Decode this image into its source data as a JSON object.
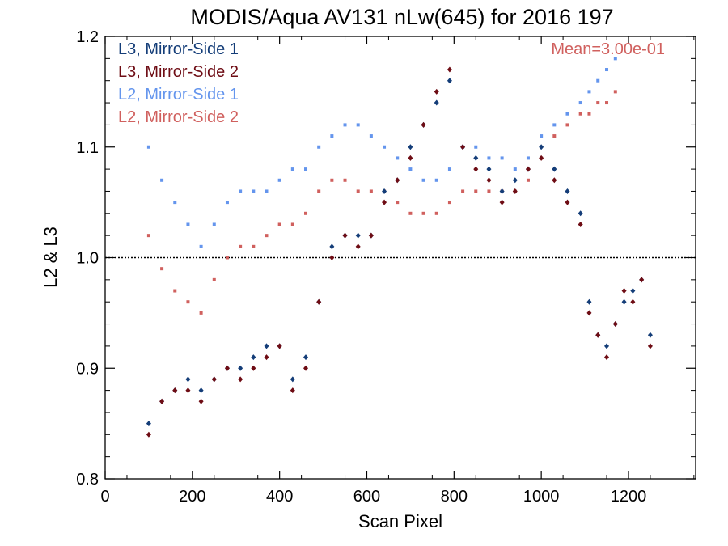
{
  "chart_data": {
    "type": "scatter",
    "title": "MODIS/Aqua AV131 nLw(645) for 2016 197",
    "xlabel": "Scan Pixel",
    "ylabel": "L2 & L3",
    "xlim": [
      0,
      1354
    ],
    "ylim": [
      0.8,
      1.2
    ],
    "xticks": [
      0,
      200,
      400,
      600,
      800,
      1000,
      1200
    ],
    "yticks": [
      0.8,
      0.9,
      1.0,
      1.1,
      1.2
    ],
    "ytick_labels": [
      "0.8",
      "0.9",
      "1.0",
      "1.1",
      "1.2"
    ],
    "reference_line": 1.0,
    "annotation": "Mean=3.00e-01",
    "annotation_color": "#d0605e",
    "legend_position": "top-left",
    "series": [
      {
        "name": "L3, Mirror-Side 1",
        "color": "#143d78",
        "marker": "diamond",
        "x": [
          100,
          130,
          160,
          190,
          220,
          250,
          280,
          310,
          340,
          370,
          400,
          430,
          460,
          490,
          520,
          550,
          580,
          610,
          640,
          670,
          700,
          730,
          760,
          790,
          820,
          850,
          880,
          910,
          940,
          970,
          1000,
          1030,
          1060,
          1090,
          1110,
          1130,
          1150,
          1170,
          1190,
          1210,
          1230,
          1250
        ],
        "y": [
          0.85,
          0.87,
          0.88,
          0.89,
          0.88,
          0.89,
          0.9,
          0.9,
          0.91,
          0.92,
          0.92,
          0.89,
          0.91,
          0.96,
          1.01,
          1.02,
          1.02,
          1.02,
          1.06,
          1.07,
          1.1,
          1.12,
          1.14,
          1.16,
          1.1,
          1.09,
          1.08,
          1.06,
          1.07,
          1.08,
          1.1,
          1.08,
          1.06,
          1.04,
          0.96,
          0.93,
          0.92,
          0.94,
          0.96,
          0.97,
          0.98,
          0.93
        ]
      },
      {
        "name": "L3, Mirror-Side 2",
        "color": "#6e0c14",
        "marker": "diamond",
        "x": [
          100,
          130,
          160,
          190,
          220,
          250,
          280,
          310,
          340,
          370,
          400,
          430,
          460,
          490,
          520,
          550,
          580,
          610,
          640,
          670,
          700,
          730,
          760,
          790,
          820,
          850,
          880,
          910,
          940,
          970,
          1000,
          1030,
          1060,
          1090,
          1110,
          1130,
          1150,
          1170,
          1190,
          1210,
          1230,
          1250
        ],
        "y": [
          0.84,
          0.87,
          0.88,
          0.88,
          0.87,
          0.89,
          0.9,
          0.89,
          0.9,
          0.91,
          0.92,
          0.88,
          0.9,
          0.96,
          1.0,
          1.02,
          1.01,
          1.02,
          1.05,
          1.07,
          1.09,
          1.12,
          1.15,
          1.17,
          1.1,
          1.08,
          1.07,
          1.05,
          1.06,
          1.08,
          1.09,
          1.07,
          1.05,
          1.03,
          0.95,
          0.93,
          0.91,
          0.94,
          0.97,
          0.96,
          0.98,
          0.92
        ]
      },
      {
        "name": "L2, Mirror-Side 1",
        "color": "#6495ed",
        "marker": "square",
        "x": [
          100,
          130,
          160,
          190,
          220,
          250,
          280,
          310,
          340,
          370,
          400,
          430,
          460,
          490,
          520,
          550,
          580,
          610,
          640,
          670,
          700,
          730,
          760,
          790,
          820,
          850,
          880,
          910,
          940,
          970,
          1000,
          1030,
          1060,
          1090,
          1110,
          1130,
          1150,
          1170
        ],
        "y": [
          1.1,
          1.07,
          1.05,
          1.03,
          1.01,
          1.03,
          1.05,
          1.06,
          1.06,
          1.06,
          1.07,
          1.08,
          1.08,
          1.1,
          1.11,
          1.12,
          1.12,
          1.11,
          1.1,
          1.09,
          1.08,
          1.07,
          1.07,
          1.08,
          1.1,
          1.1,
          1.09,
          1.09,
          1.08,
          1.09,
          1.11,
          1.12,
          1.13,
          1.14,
          1.15,
          1.16,
          1.17,
          1.18
        ]
      },
      {
        "name": "L2, Mirror-Side 2",
        "color": "#d0605e",
        "marker": "square",
        "x": [
          100,
          130,
          160,
          190,
          220,
          250,
          280,
          310,
          340,
          370,
          400,
          430,
          460,
          490,
          520,
          550,
          580,
          610,
          640,
          670,
          700,
          730,
          760,
          790,
          820,
          850,
          880,
          910,
          940,
          970,
          1000,
          1030,
          1060,
          1090,
          1110,
          1130,
          1150,
          1170
        ],
        "y": [
          1.02,
          0.99,
          0.97,
          0.96,
          0.95,
          0.98,
          1.0,
          1.01,
          1.01,
          1.02,
          1.03,
          1.03,
          1.04,
          1.06,
          1.07,
          1.07,
          1.06,
          1.06,
          1.06,
          1.05,
          1.04,
          1.04,
          1.04,
          1.05,
          1.06,
          1.06,
          1.06,
          1.06,
          1.06,
          1.07,
          1.09,
          1.11,
          1.12,
          1.13,
          1.13,
          1.14,
          1.14,
          1.15
        ]
      }
    ]
  }
}
